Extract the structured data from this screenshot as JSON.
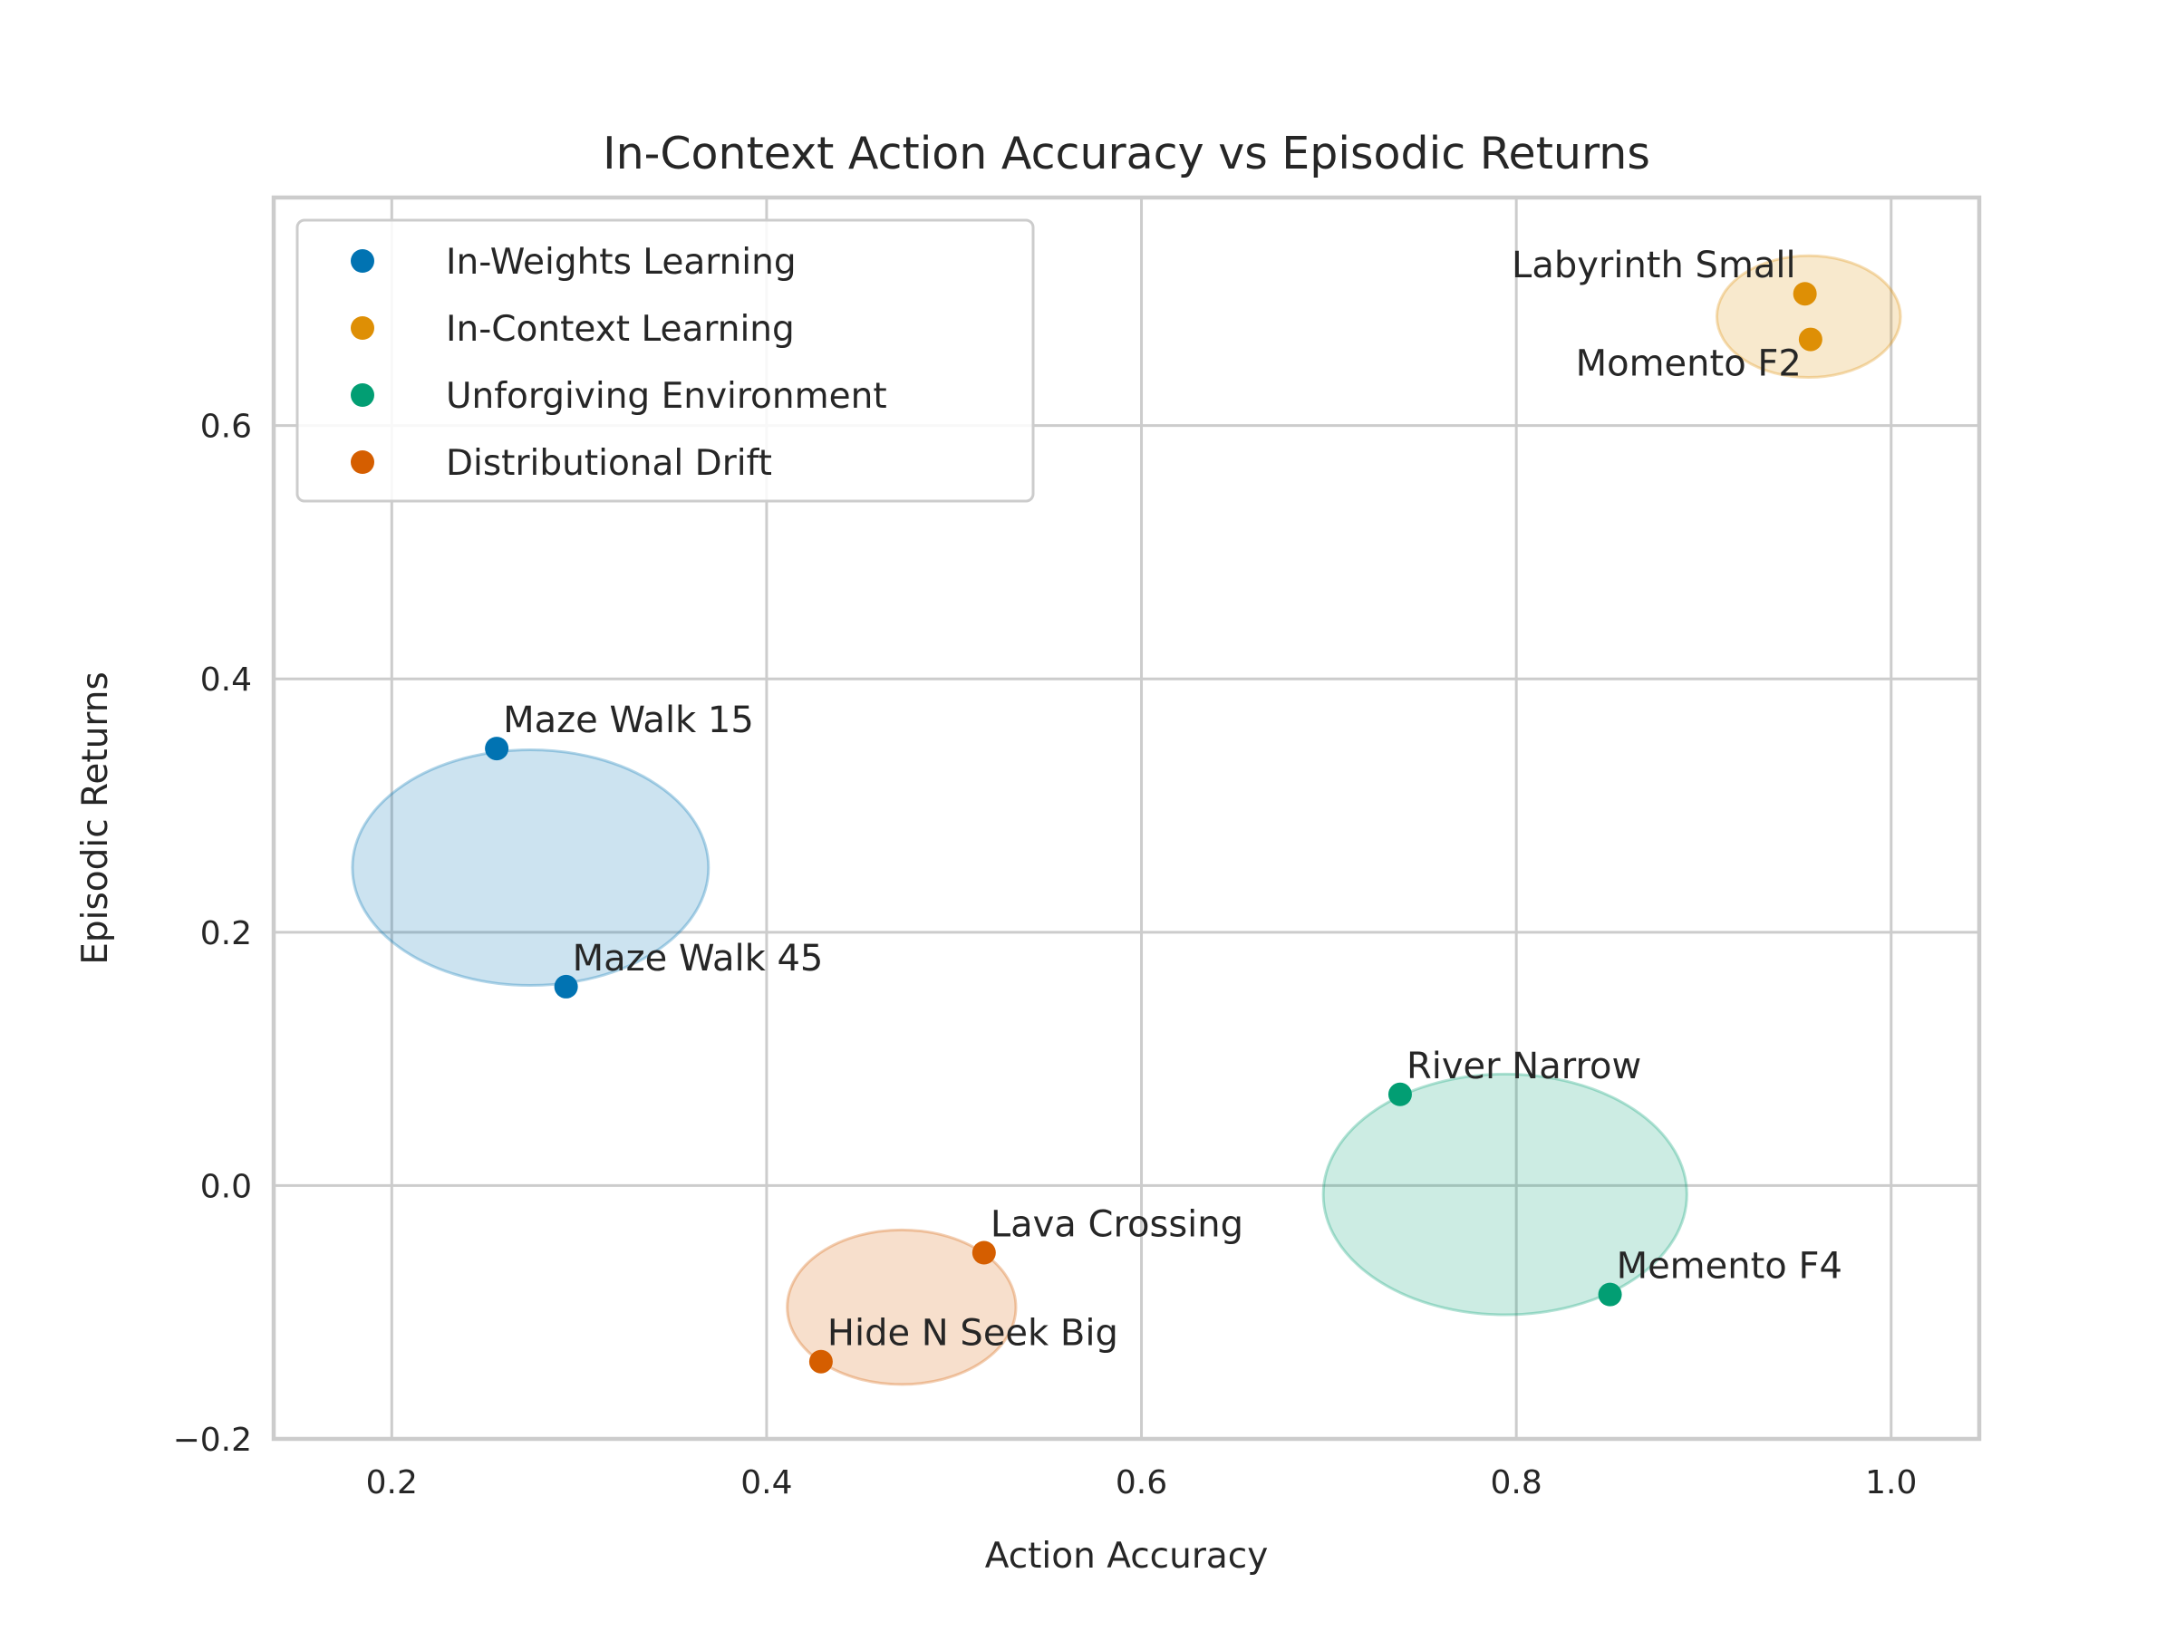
{
  "chart_data": {
    "type": "scatter",
    "title": "In-Context Action Accuracy vs Episodic Returns",
    "xlabel": "Action Accuracy",
    "ylabel": "Episodic Returns",
    "xlim": [
      0.137,
      1.047
    ],
    "ylim": [
      -0.2,
      0.78
    ],
    "xticks": [
      0.2,
      0.4,
      0.6,
      0.8,
      1.0
    ],
    "xtick_labels": [
      "0.2",
      "0.4",
      "0.6",
      "0.8",
      "1.0"
    ],
    "yticks": [
      -0.2,
      0.0,
      0.2,
      0.4,
      0.6
    ],
    "ytick_labels": [
      "−0.2",
      "0.0",
      "0.2",
      "0.4",
      "0.6"
    ],
    "grid": true,
    "legend_position": "top-left",
    "series": [
      {
        "name": "In-Weights Learning",
        "color": "#0173b2",
        "points": [
          {
            "label": "Maze Walk 15",
            "x": 0.256,
            "y": 0.345
          },
          {
            "label": "Maze Walk 45",
            "x": 0.293,
            "y": 0.157
          }
        ],
        "ellipse": {
          "cx": 0.274,
          "cy": 0.251,
          "rx": 0.095,
          "ry": 0.093
        }
      },
      {
        "name": "In-Context Learning",
        "color": "#de8f05",
        "points": [
          {
            "label": "Labyrinth Small",
            "x": 0.954,
            "y": 0.704
          },
          {
            "label": "Momento F2",
            "x": 0.957,
            "y": 0.668
          }
        ],
        "ellipse": {
          "cx": 0.956,
          "cy": 0.686,
          "rx": 0.049,
          "ry": 0.048
        }
      },
      {
        "name": "Unforgiving Environment",
        "color": "#029e73",
        "points": [
          {
            "label": "River Narrow",
            "x": 0.738,
            "y": 0.072
          },
          {
            "label": "Memento F4",
            "x": 0.85,
            "y": -0.086
          }
        ],
        "ellipse": {
          "cx": 0.794,
          "cy": -0.007,
          "rx": 0.097,
          "ry": 0.095
        }
      },
      {
        "name": "Distributional Drift",
        "color": "#d55e00",
        "points": [
          {
            "label": "Lava Crossing",
            "x": 0.516,
            "y": -0.053
          },
          {
            "label": "Hide N Seek Big",
            "x": 0.429,
            "y": -0.139
          }
        ],
        "ellipse": {
          "cx": 0.472,
          "cy": -0.096,
          "rx": 0.061,
          "ry": 0.061
        }
      }
    ]
  }
}
